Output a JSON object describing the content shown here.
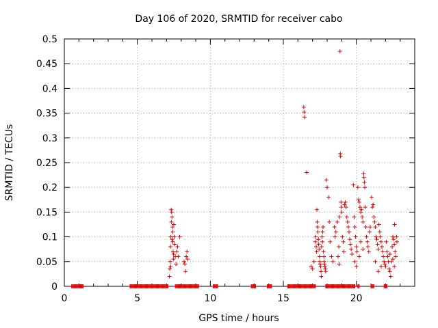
{
  "chart_data": {
    "type": "scatter",
    "title": "Day 106 of 2020, SRMTID for receiver cabo",
    "xlabel": "GPS time / hours",
    "ylabel": "SRMTID / TECUs",
    "xlim": [
      0,
      24
    ],
    "ylim": [
      0,
      0.5
    ],
    "grid": true,
    "marker": "+",
    "color": "#dd0000",
    "x_ticks": [
      0,
      5,
      10,
      15,
      20
    ],
    "x_tick_labels": [
      "0",
      "5",
      "10",
      "15",
      "20"
    ],
    "y_ticks": [
      0,
      0.05,
      0.1,
      0.15,
      0.2,
      0.25,
      0.3,
      0.35,
      0.4,
      0.45,
      0.5
    ],
    "y_tick_labels": [
      "0",
      "0.05",
      "0.1",
      "0.15",
      "0.2",
      "0.25",
      "0.3",
      "0.35",
      "0.4",
      "0.45",
      "0.5"
    ],
    "zero_segments": [
      [
        0.5,
        1.3
      ],
      [
        4.5,
        7.1
      ],
      [
        7.6,
        9.2
      ],
      [
        10.2,
        10.5
      ],
      [
        12.8,
        13.1
      ],
      [
        13.9,
        14.2
      ],
      [
        15.3,
        17.2
      ],
      [
        17.9,
        19.9
      ],
      [
        20.1,
        20.2
      ],
      [
        21.0,
        21.2
      ],
      [
        21.9,
        22.1
      ]
    ],
    "series": [
      {
        "name": "SRMTID",
        "points": [
          [
            7.2,
            0.02
          ],
          [
            7.22,
            0.035
          ],
          [
            7.25,
            0.05
          ],
          [
            7.27,
            0.08
          ],
          [
            7.3,
            0.1
          ],
          [
            7.32,
            0.155
          ],
          [
            7.35,
            0.15
          ],
          [
            7.37,
            0.14
          ],
          [
            7.4,
            0.12
          ],
          [
            7.42,
            0.09
          ],
          [
            7.45,
            0.07
          ],
          [
            7.47,
            0.055
          ],
          [
            7.5,
            0.125
          ],
          [
            7.52,
            0.1
          ],
          [
            7.55,
            0.085
          ],
          [
            7.6,
            0.06
          ],
          [
            7.65,
            0.045
          ],
          [
            7.7,
            0.07
          ],
          [
            7.75,
            0.08
          ],
          [
            7.8,
            0.06
          ],
          [
            7.9,
            0.1
          ],
          [
            8.2,
            0.05
          ],
          [
            8.25,
            0.045
          ],
          [
            8.3,
            0.03
          ],
          [
            8.35,
            0.06
          ],
          [
            8.4,
            0.07
          ],
          [
            8.45,
            0.055
          ],
          [
            7.28,
            0.04
          ],
          [
            7.33,
            0.13
          ],
          [
            7.38,
            0.095
          ],
          [
            7.43,
            0.11
          ],
          [
            7.48,
            0.065
          ],
          [
            16.4,
            0.362
          ],
          [
            16.42,
            0.352
          ],
          [
            16.45,
            0.342
          ],
          [
            16.6,
            0.23
          ],
          [
            16.9,
            0.04
          ],
          [
            17.0,
            0.035
          ],
          [
            17.1,
            0.05
          ],
          [
            17.2,
            0.09
          ],
          [
            17.22,
            0.1
          ],
          [
            17.25,
            0.08
          ],
          [
            17.28,
            0.07
          ],
          [
            17.3,
            0.155
          ],
          [
            17.32,
            0.13
          ],
          [
            17.35,
            0.12
          ],
          [
            17.37,
            0.11
          ],
          [
            17.4,
            0.095
          ],
          [
            17.42,
            0.085
          ],
          [
            17.45,
            0.075
          ],
          [
            17.48,
            0.06
          ],
          [
            17.5,
            0.05
          ],
          [
            17.52,
            0.045
          ],
          [
            17.55,
            0.04
          ],
          [
            17.58,
            0.03
          ],
          [
            17.6,
            0.02
          ],
          [
            17.62,
            0.08
          ],
          [
            17.65,
            0.1
          ],
          [
            17.68,
            0.09
          ],
          [
            17.7,
            0.11
          ],
          [
            17.72,
            0.12
          ],
          [
            17.75,
            0.07
          ],
          [
            17.78,
            0.06
          ],
          [
            17.8,
            0.05
          ],
          [
            17.82,
            0.045
          ],
          [
            17.85,
            0.04
          ],
          [
            17.88,
            0.035
          ],
          [
            17.9,
            0.03
          ],
          [
            17.95,
            0.215
          ],
          [
            18.0,
            0.2
          ],
          [
            18.1,
            0.18
          ],
          [
            18.15,
            0.13
          ],
          [
            18.2,
            0.09
          ],
          [
            18.3,
            0.06
          ],
          [
            18.4,
            0.05
          ],
          [
            18.5,
            0.12
          ],
          [
            18.55,
            0.1
          ],
          [
            18.6,
            0.11
          ],
          [
            18.7,
            0.13
          ],
          [
            18.8,
            0.08
          ],
          [
            18.85,
            0.14
          ],
          [
            18.88,
            0.475
          ],
          [
            18.9,
            0.268
          ],
          [
            18.92,
            0.263
          ],
          [
            18.95,
            0.17
          ],
          [
            18.97,
            0.16
          ],
          [
            19.0,
            0.15
          ],
          [
            19.05,
            0.1
          ],
          [
            19.1,
            0.09
          ],
          [
            19.2,
            0.165
          ],
          [
            19.25,
            0.17
          ],
          [
            19.3,
            0.16
          ],
          [
            19.35,
            0.14
          ],
          [
            19.4,
            0.13
          ],
          [
            19.45,
            0.12
          ],
          [
            19.5,
            0.11
          ],
          [
            19.55,
            0.095
          ],
          [
            19.6,
            0.085
          ],
          [
            19.65,
            0.075
          ],
          [
            18.75,
            0.06
          ],
          [
            18.82,
            0.045
          ],
          [
            19.15,
            0.07
          ],
          [
            19.7,
            0.065
          ],
          [
            19.8,
            0.205
          ],
          [
            19.85,
            0.14
          ],
          [
            19.9,
            0.12
          ],
          [
            19.95,
            0.1
          ],
          [
            20.0,
            0.08
          ],
          [
            20.05,
            0.07
          ],
          [
            20.1,
            0.2
          ],
          [
            20.15,
            0.175
          ],
          [
            20.2,
            0.17
          ],
          [
            20.25,
            0.16
          ],
          [
            20.3,
            0.15
          ],
          [
            20.35,
            0.155
          ],
          [
            20.4,
            0.14
          ],
          [
            20.45,
            0.13
          ],
          [
            20.5,
            0.228
          ],
          [
            20.52,
            0.22
          ],
          [
            20.55,
            0.21
          ],
          [
            20.58,
            0.2
          ],
          [
            20.6,
            0.16
          ],
          [
            20.65,
            0.12
          ],
          [
            20.7,
            0.1
          ],
          [
            20.75,
            0.09
          ],
          [
            20.8,
            0.08
          ],
          [
            20.85,
            0.07
          ],
          [
            20.9,
            0.11
          ],
          [
            20.95,
            0.12
          ],
          [
            19.9,
            0.05
          ],
          [
            20.0,
            0.04
          ],
          [
            20.2,
            0.06
          ],
          [
            20.3,
            0.09
          ],
          [
            20.45,
            0.075
          ],
          [
            21.05,
            0.18
          ],
          [
            21.1,
            0.16
          ],
          [
            21.15,
            0.165
          ],
          [
            21.2,
            0.14
          ],
          [
            21.25,
            0.13
          ],
          [
            21.3,
            0.12
          ],
          [
            21.35,
            0.1
          ],
          [
            21.4,
            0.095
          ],
          [
            21.45,
            0.085
          ],
          [
            21.5,
            0.075
          ],
          [
            21.55,
            0.125
          ],
          [
            21.6,
            0.11
          ],
          [
            21.65,
            0.1
          ],
          [
            21.7,
            0.09
          ],
          [
            21.75,
            0.08
          ],
          [
            21.8,
            0.07
          ],
          [
            21.85,
            0.06
          ],
          [
            21.9,
            0.05
          ],
          [
            21.95,
            0.045
          ],
          [
            22.0,
            0.04
          ],
          [
            22.05,
            0.09
          ],
          [
            22.1,
            0.07
          ],
          [
            22.15,
            0.06
          ],
          [
            22.2,
            0.05
          ],
          [
            22.25,
            0.035
          ],
          [
            22.3,
            0.03
          ],
          [
            22.35,
            0.02
          ],
          [
            22.4,
            0.05
          ],
          [
            22.45,
            0.08
          ],
          [
            22.5,
            0.1
          ],
          [
            22.55,
            0.095
          ],
          [
            22.6,
            0.085
          ],
          [
            22.62,
            0.125
          ],
          [
            22.65,
            0.07
          ],
          [
            22.7,
            0.06
          ],
          [
            22.75,
            0.1
          ],
          [
            22.78,
            0.09
          ],
          [
            21.3,
            0.05
          ],
          [
            21.5,
            0.03
          ],
          [
            21.7,
            0.04
          ],
          [
            22.3,
            0.065
          ],
          [
            22.5,
            0.055
          ],
          [
            22.6,
            0.04
          ]
        ]
      }
    ]
  }
}
